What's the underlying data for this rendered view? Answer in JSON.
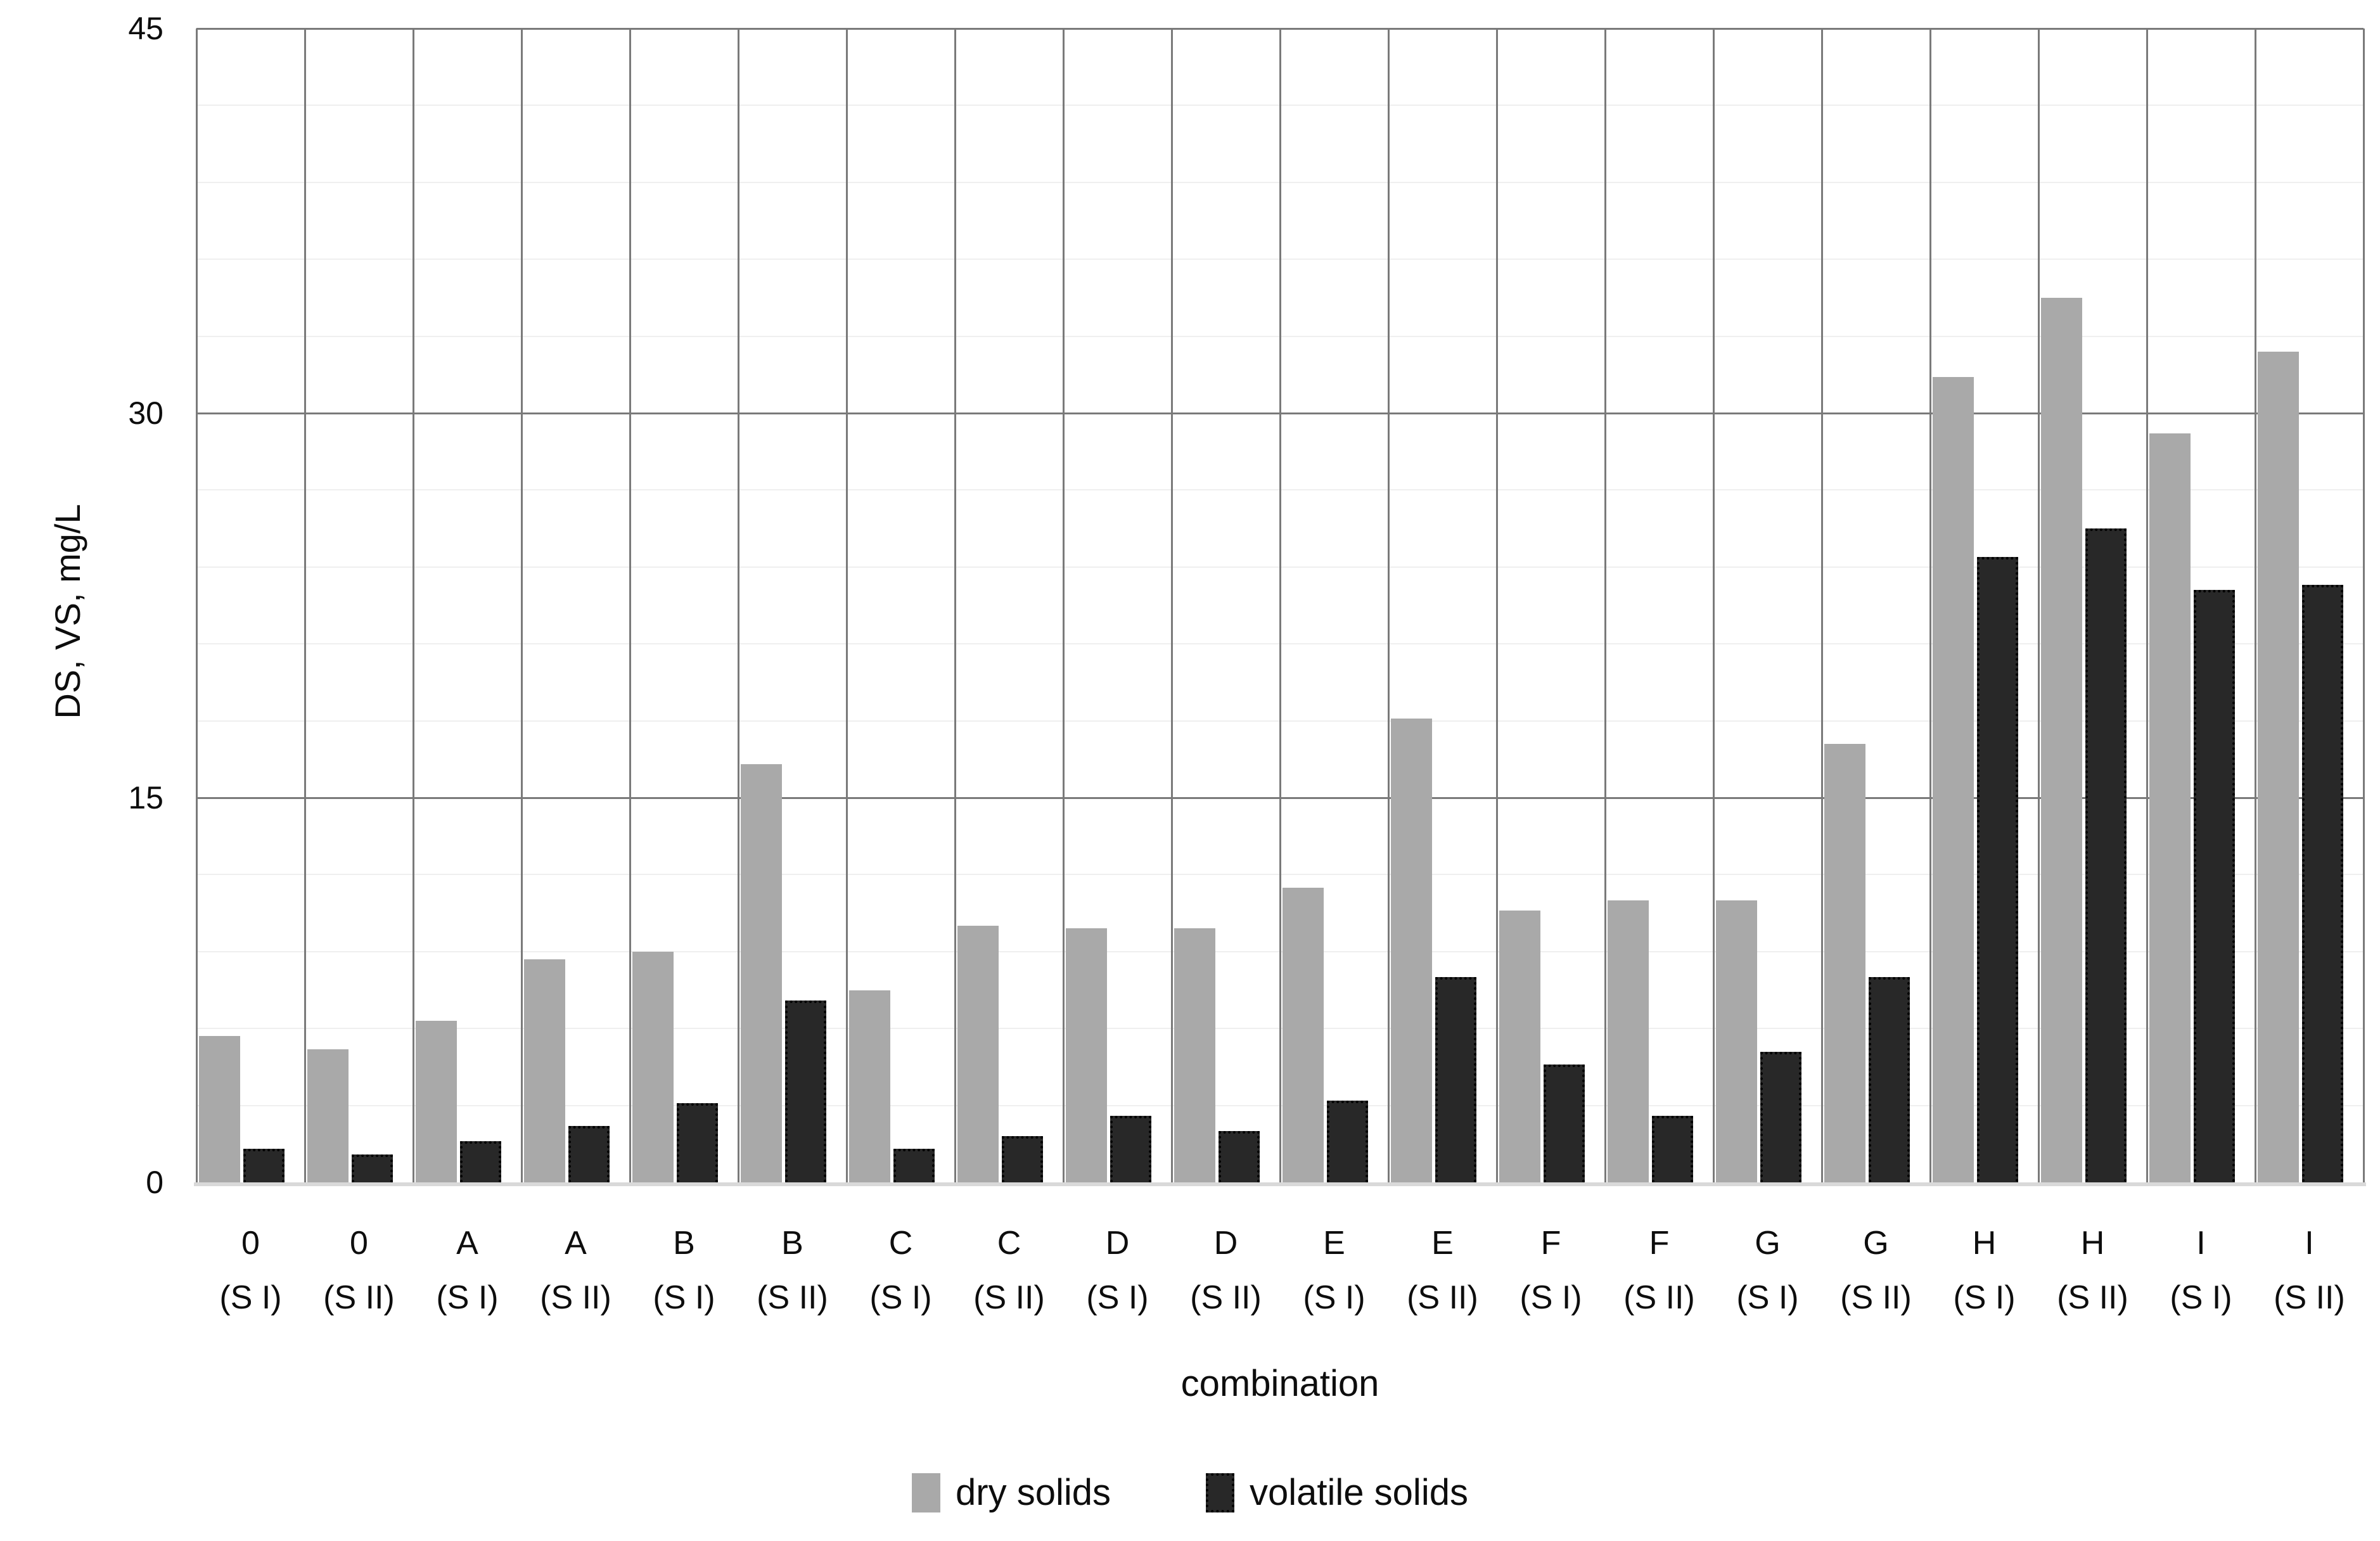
{
  "figure": {
    "y_axis": {
      "title": "DS, VS, mg/L",
      "ticks": [
        "0",
        "15",
        "30",
        "45"
      ]
    },
    "x_axis": {
      "title": "combination"
    },
    "legend": {
      "dry_label": "dry solids",
      "volatile_label": "volatile solids"
    },
    "colors": {
      "dry_solids": "#a9a9a9",
      "volatile_solids": "#282828",
      "major_gridline": "#7a7a7a",
      "minor_gridline": "#efefef",
      "axis_line": "#d9d9d9"
    }
  },
  "chart_data": {
    "type": "bar",
    "title": "",
    "xlabel": "combination",
    "ylabel": "DS, VS, mg/L",
    "ylim": [
      0,
      45
    ],
    "yticks": [
      0,
      15,
      30,
      45
    ],
    "gridlines": {
      "major_step": 15,
      "minor_step": 3,
      "vertical_category_separators": true
    },
    "legend_position": "bottom",
    "categories": [
      {
        "combo": "0",
        "scenario": "(S I)"
      },
      {
        "combo": "0",
        "scenario": "(S II)"
      },
      {
        "combo": "A",
        "scenario": "(S I)"
      },
      {
        "combo": "A",
        "scenario": "(S II)"
      },
      {
        "combo": "B",
        "scenario": "(S I)"
      },
      {
        "combo": "B",
        "scenario": "(S II)"
      },
      {
        "combo": "C",
        "scenario": "(S I)"
      },
      {
        "combo": "C",
        "scenario": "(S II)"
      },
      {
        "combo": "D",
        "scenario": "(S I)"
      },
      {
        "combo": "D",
        "scenario": "(S II)"
      },
      {
        "combo": "E",
        "scenario": "(S I)"
      },
      {
        "combo": "E",
        "scenario": "(S II)"
      },
      {
        "combo": "F",
        "scenario": "(S I)"
      },
      {
        "combo": "F",
        "scenario": "(S II)"
      },
      {
        "combo": "G",
        "scenario": "(S I)"
      },
      {
        "combo": "G",
        "scenario": "(S II)"
      },
      {
        "combo": "H",
        "scenario": "(S I)"
      },
      {
        "combo": "H",
        "scenario": "(S II)"
      },
      {
        "combo": "I",
        "scenario": "(S I)"
      },
      {
        "combo": "I",
        "scenario": "(S II)"
      }
    ],
    "series": [
      {
        "name": "dry solids",
        "color": "#a9a9a9",
        "values": [
          5.7,
          5.2,
          6.3,
          8.7,
          9.0,
          16.3,
          7.5,
          10.0,
          9.9,
          9.9,
          11.5,
          18.1,
          10.6,
          11.0,
          11.0,
          17.1,
          31.4,
          34.5,
          29.2,
          32.4
        ]
      },
      {
        "name": "volatile solids",
        "color": "#282828",
        "values": [
          1.3,
          1.1,
          1.6,
          2.2,
          3.1,
          7.1,
          1.3,
          1.8,
          2.6,
          2.0,
          3.2,
          8.0,
          4.6,
          2.6,
          5.1,
          8.0,
          24.4,
          25.5,
          23.1,
          23.3
        ]
      }
    ]
  }
}
